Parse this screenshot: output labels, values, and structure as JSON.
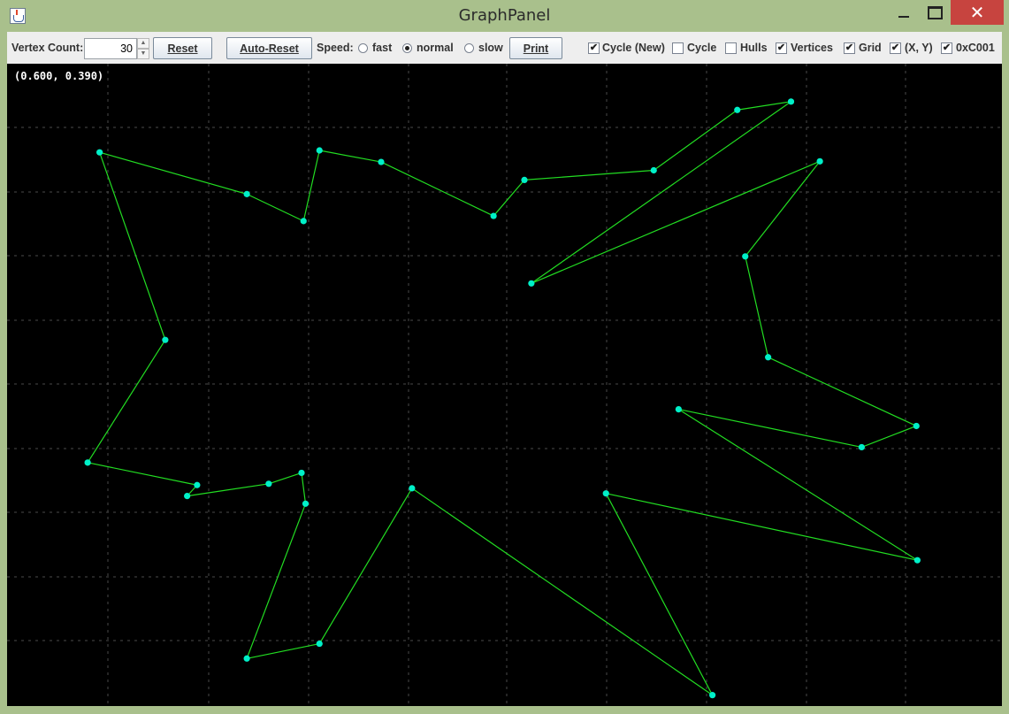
{
  "window": {
    "title": "GraphPanel",
    "minimize_icon": "minimize-icon",
    "maximize_icon": "maximize-icon",
    "close_icon": "close-icon",
    "close_glyph": "✕"
  },
  "toolbar": {
    "vertex_count_label": "Vertex Count:",
    "vertex_count_value": "30",
    "spinner_up": "▲",
    "spinner_down": "▼",
    "reset_label": "Reset",
    "auto_reset_label": "Auto-Reset",
    "speed_label": "Speed:",
    "speed_options": [
      {
        "label": "fast",
        "selected": false
      },
      {
        "label": "normal",
        "selected": true
      },
      {
        "label": "slow",
        "selected": false
      }
    ],
    "print_label": "Print",
    "checkboxes": [
      {
        "label": "Cycle (New)",
        "checked": true
      },
      {
        "label": "Cycle",
        "checked": false
      },
      {
        "label": "Hulls",
        "checked": false
      },
      {
        "label": "Vertices",
        "checked": true
      },
      {
        "label": "Grid",
        "checked": true
      },
      {
        "label": "(X, Y)",
        "checked": true
      },
      {
        "label": "0xC001",
        "checked": true
      }
    ],
    "check_glyph": "✔"
  },
  "canvas": {
    "coordinate_readout": "(0.600, 0.390)",
    "colors": {
      "background": "#000000",
      "edge": "#22dd22",
      "vertex": "#00f0c8",
      "grid": "#4a4a4a"
    },
    "cycle_vertices": [
      [
        0.093,
        0.138
      ],
      [
        0.241,
        0.203
      ],
      [
        0.298,
        0.245
      ],
      [
        0.314,
        0.135
      ],
      [
        0.376,
        0.153
      ],
      [
        0.489,
        0.237
      ],
      [
        0.52,
        0.181
      ],
      [
        0.65,
        0.166
      ],
      [
        0.734,
        0.072
      ],
      [
        0.788,
        0.059
      ],
      [
        0.527,
        0.342
      ],
      [
        0.817,
        0.152
      ],
      [
        0.742,
        0.3
      ],
      [
        0.765,
        0.457
      ],
      [
        0.914,
        0.564
      ],
      [
        0.859,
        0.597
      ],
      [
        0.675,
        0.538
      ],
      [
        0.915,
        0.773
      ],
      [
        0.602,
        0.669
      ],
      [
        0.709,
        0.983
      ],
      [
        0.407,
        0.661
      ],
      [
        0.314,
        0.903
      ],
      [
        0.241,
        0.926
      ],
      [
        0.3,
        0.685
      ],
      [
        0.296,
        0.637
      ],
      [
        0.263,
        0.654
      ],
      [
        0.181,
        0.673
      ],
      [
        0.191,
        0.656
      ],
      [
        0.081,
        0.621
      ],
      [
        0.159,
        0.43
      ]
    ]
  }
}
